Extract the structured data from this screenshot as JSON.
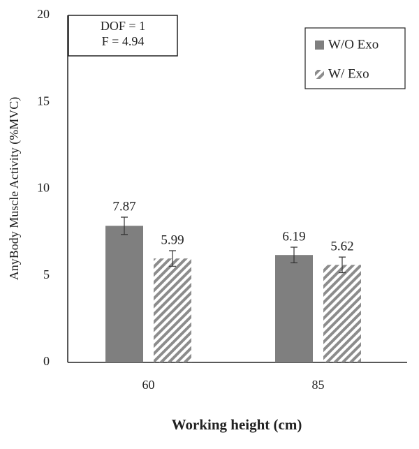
{
  "chart_data": {
    "type": "bar",
    "y_label": "AnyBody  Muscle  Activity  (%MVC)",
    "x_label": "Working height (cm)",
    "annotations": [
      "DOF = 1",
      "F = 4.94"
    ],
    "categories": [
      "60",
      "85"
    ],
    "series": [
      {
        "name": "W/O Exo",
        "color": "#7f7f7f",
        "pattern": "solid",
        "values": [
          7.87,
          6.19
        ],
        "errors": [
          0.5,
          0.45
        ]
      },
      {
        "name": "W/ Exo",
        "color": "#8c8c8c",
        "pattern": "hatch",
        "values": [
          5.99,
          5.62
        ],
        "errors": [
          0.45,
          0.45
        ]
      }
    ],
    "ylim": [
      0,
      20
    ],
    "yticks": [
      0,
      5,
      10,
      15,
      20
    ],
    "grid": false,
    "legend": "upper right"
  }
}
